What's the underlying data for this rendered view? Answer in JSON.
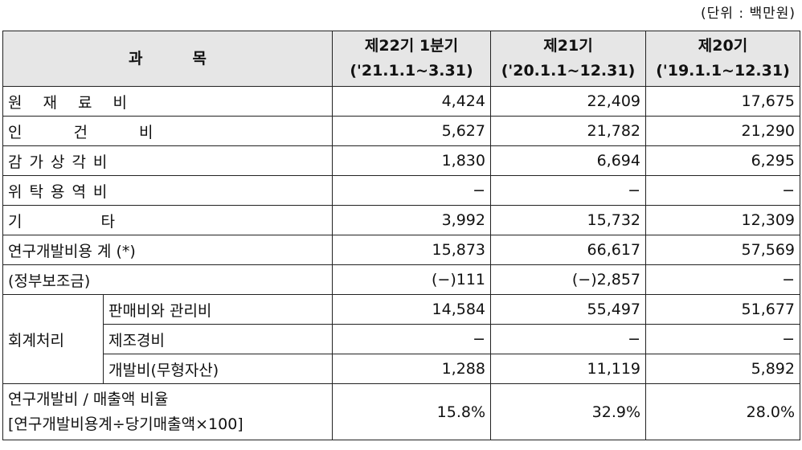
{
  "unit_label": "(단위 : 백만원)",
  "header": {
    "subject": "과목",
    "cols": [
      {
        "title": "제22기 1분기",
        "period": "('21.1.1~3.31)"
      },
      {
        "title": "제21기",
        "period": "('20.1.1~12.31)"
      },
      {
        "title": "제20기",
        "period": "('19.1.1~12.31)"
      }
    ]
  },
  "rows": [
    {
      "label": "원재료비",
      "values": [
        "4,424",
        "22,409",
        "17,675"
      ]
    },
    {
      "label": "인건비",
      "values": [
        "5,627",
        "21,782",
        "21,290"
      ]
    },
    {
      "label": "감가상각비",
      "values": [
        "1,830",
        "6,694",
        "6,295"
      ]
    },
    {
      "label": "위탁용역비",
      "values": [
        "−",
        "−",
        "−"
      ]
    },
    {
      "label": "기타",
      "values": [
        "3,992",
        "15,732",
        "12,309"
      ]
    },
    {
      "label": "연구개발비용 계 (*)",
      "values": [
        "15,873",
        "66,617",
        "57,569"
      ]
    },
    {
      "label": "(정부보조금)",
      "values": [
        "(−)111",
        "(−)2,857",
        "−"
      ]
    }
  ],
  "accounting": {
    "group_label": "회계처리",
    "rows": [
      {
        "label": "판매비와 관리비",
        "values": [
          "14,584",
          "55,497",
          "51,677"
        ]
      },
      {
        "label": "제조경비",
        "values": [
          "−",
          "−",
          "−"
        ]
      },
      {
        "label": "개발비(무형자산)",
        "values": [
          "1,288",
          "11,119",
          "5,892"
        ]
      }
    ]
  },
  "ratio": {
    "label_line1": "연구개발비 / 매출액 비율",
    "label_line2": "[연구개발비용계÷당기매출액×100]",
    "values": [
      "15.8%",
      "32.9%",
      "28.0%"
    ]
  }
}
